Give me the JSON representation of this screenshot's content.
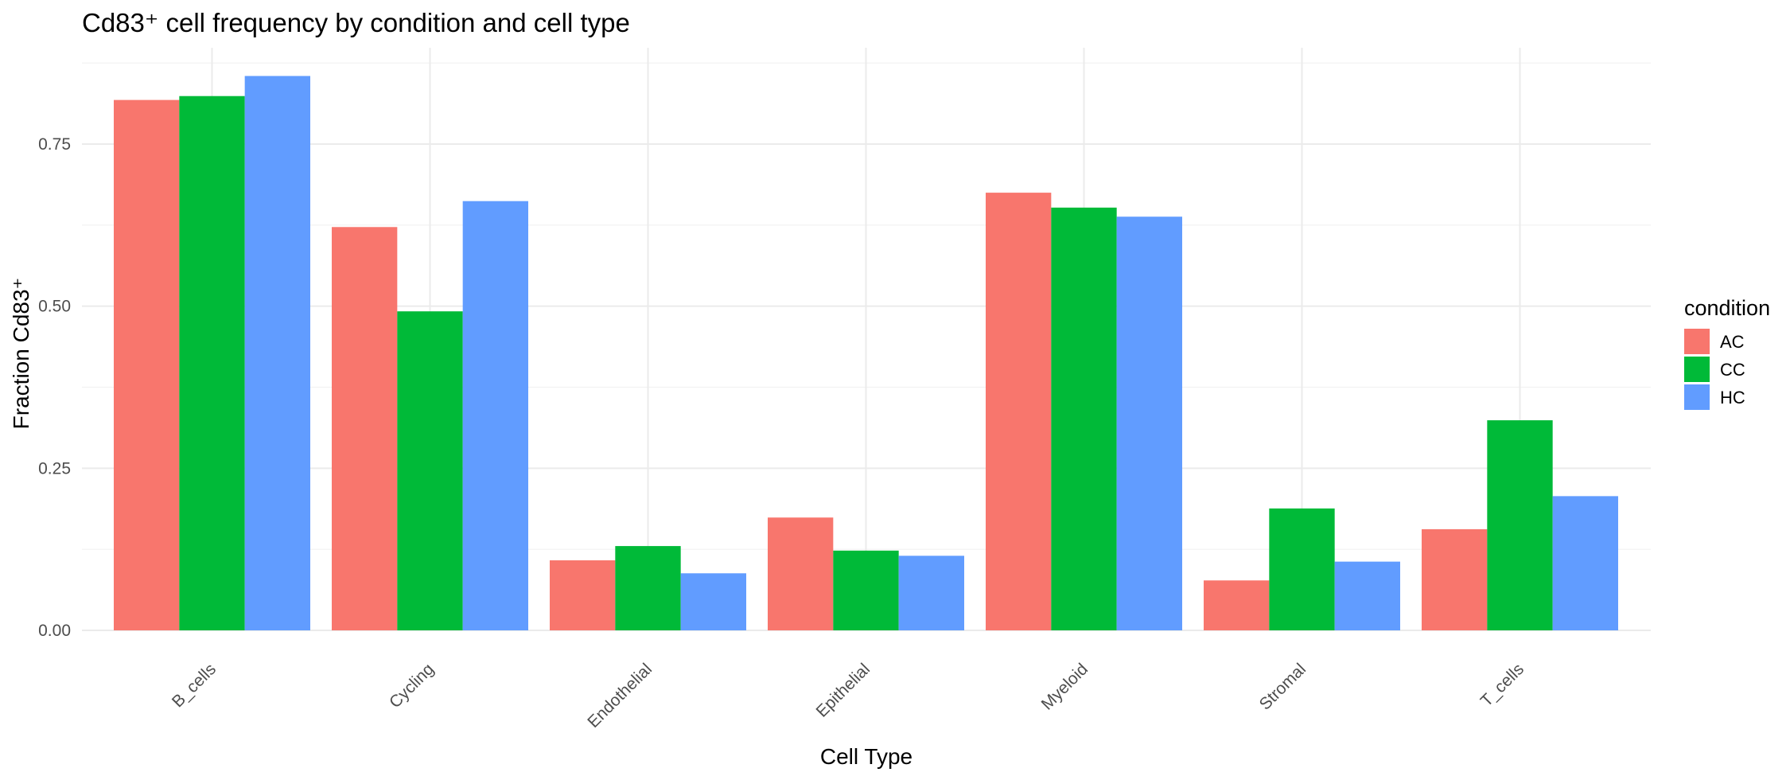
{
  "chart_data": {
    "type": "bar",
    "title": "Cd83⁺ cell frequency by condition and cell type",
    "xlabel": "Cell Type",
    "ylabel": "Fraction Cd83⁺",
    "categories": [
      "B_cells",
      "Cycling",
      "Endothelial",
      "Epithelial",
      "Myeloid",
      "Stromal",
      "T_cells"
    ],
    "series": [
      {
        "name": "AC",
        "color": "#F8766D",
        "values": [
          0.818,
          0.622,
          0.108,
          0.174,
          0.675,
          0.077,
          0.156
        ]
      },
      {
        "name": "CC",
        "color": "#00BA38",
        "values": [
          0.824,
          0.492,
          0.13,
          0.123,
          0.652,
          0.188,
          0.324
        ]
      },
      {
        "name": "HC",
        "color": "#619CFF",
        "values": [
          0.855,
          0.662,
          0.088,
          0.115,
          0.638,
          0.106,
          0.207
        ]
      }
    ],
    "ylim": [
      0,
      0.9
    ],
    "yticks": [
      0,
      0.25,
      0.5,
      0.75
    ],
    "ytick_labels": [
      "0.00",
      "0.25",
      "0.50",
      "0.75"
    ],
    "grid": true,
    "legend": {
      "title": "condition",
      "position": "right"
    }
  }
}
